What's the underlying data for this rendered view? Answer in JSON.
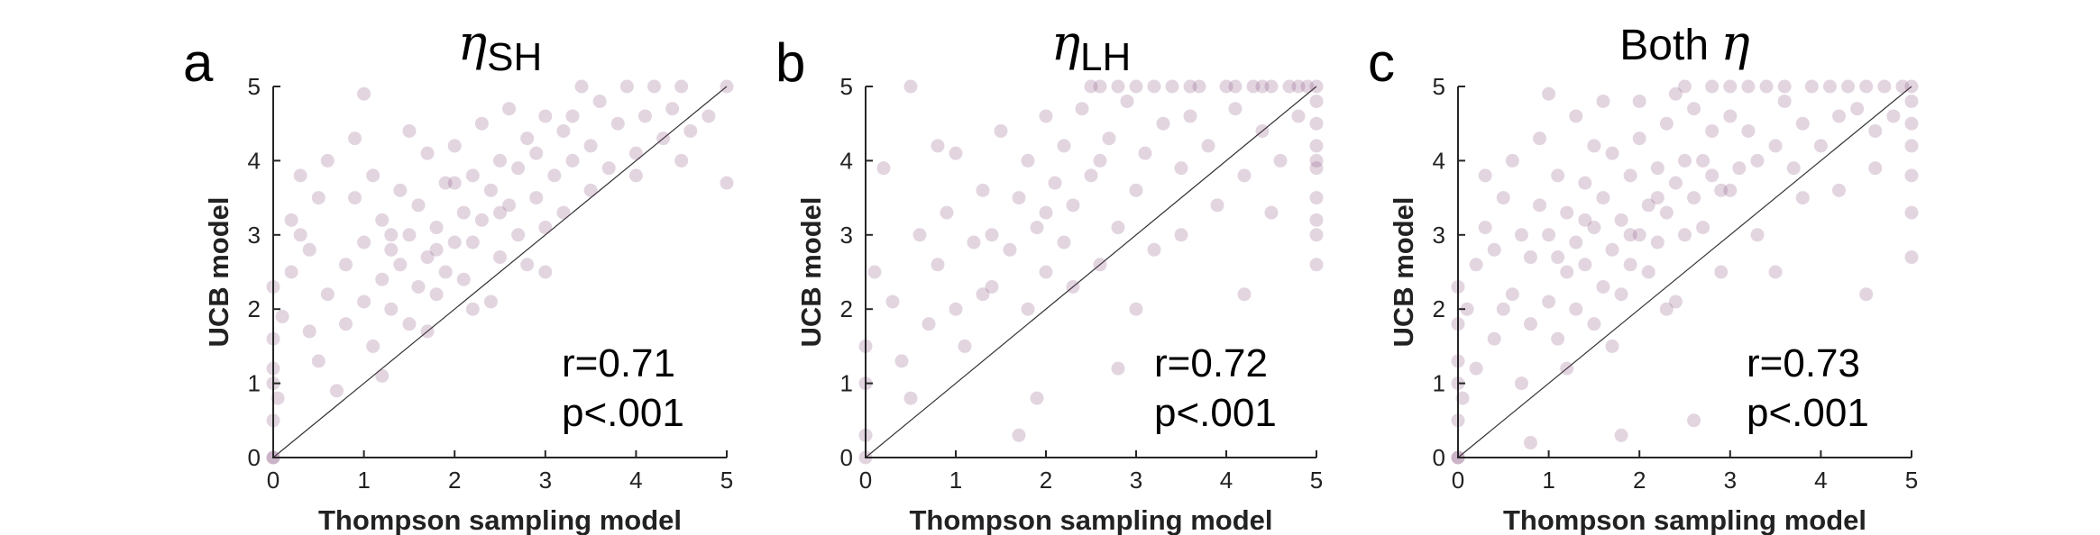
{
  "chart_data": [
    {
      "type": "scatter",
      "panel_label": "a",
      "title_symbol": "η",
      "title_subscript": "SH",
      "title_text": "",
      "xlabel": "Thompson sampling model",
      "ylabel": "UCB model",
      "xlim": [
        0,
        5
      ],
      "ylim": [
        0,
        5
      ],
      "xticks": [
        "0",
        "1",
        "2",
        "3",
        "4",
        "5"
      ],
      "yticks": [
        "0",
        "1",
        "2",
        "3",
        "4",
        "5"
      ],
      "identity_line": true,
      "point_color": "#7b3f74",
      "annotation_r": "r=0.71",
      "annotation_p": "p<.001",
      "points": [
        [
          0,
          0
        ],
        [
          0,
          0
        ],
        [
          0,
          0.5
        ],
        [
          0,
          1.0
        ],
        [
          0,
          1.2
        ],
        [
          0,
          1.6
        ],
        [
          0,
          2.3
        ],
        [
          0.05,
          0.8
        ],
        [
          0.1,
          1.9
        ],
        [
          0.2,
          2.5
        ],
        [
          0.3,
          3.0
        ],
        [
          0.4,
          1.7
        ],
        [
          0.5,
          1.3
        ],
        [
          0.6,
          2.2
        ],
        [
          0.7,
          0.9
        ],
        [
          0.8,
          2.6
        ],
        [
          0.9,
          3.5
        ],
        [
          1.0,
          2.1
        ],
        [
          1.0,
          2.9
        ],
        [
          1.1,
          1.5
        ],
        [
          1.1,
          3.8
        ],
        [
          1.2,
          2.4
        ],
        [
          1.2,
          3.2
        ],
        [
          1.3,
          2.0
        ],
        [
          1.3,
          2.8
        ],
        [
          1.4,
          3.6
        ],
        [
          1.4,
          2.6
        ],
        [
          1.5,
          1.8
        ],
        [
          1.5,
          3.0
        ],
        [
          1.6,
          2.3
        ],
        [
          1.6,
          3.4
        ],
        [
          1.7,
          2.7
        ],
        [
          1.7,
          4.1
        ],
        [
          1.8,
          2.2
        ],
        [
          1.8,
          3.1
        ],
        [
          1.9,
          3.7
        ],
        [
          1.9,
          2.5
        ],
        [
          2.0,
          2.9
        ],
        [
          2.0,
          4.2
        ],
        [
          2.1,
          3.3
        ],
        [
          2.1,
          2.4
        ],
        [
          2.2,
          3.8
        ],
        [
          2.2,
          2.9
        ],
        [
          2.3,
          4.5
        ],
        [
          2.3,
          3.2
        ],
        [
          2.4,
          2.1
        ],
        [
          2.4,
          3.6
        ],
        [
          2.5,
          4.0
        ],
        [
          2.5,
          2.7
        ],
        [
          2.6,
          3.4
        ],
        [
          2.6,
          4.7
        ],
        [
          2.7,
          3.0
        ],
        [
          2.7,
          3.9
        ],
        [
          2.8,
          4.3
        ],
        [
          2.8,
          2.6
        ],
        [
          2.9,
          3.5
        ],
        [
          3.0,
          4.6
        ],
        [
          3.0,
          3.1
        ],
        [
          3.1,
          3.8
        ],
        [
          3.2,
          4.4
        ],
        [
          3.2,
          3.3
        ],
        [
          3.3,
          4.0
        ],
        [
          3.4,
          5.0
        ],
        [
          3.5,
          4.2
        ],
        [
          3.5,
          3.6
        ],
        [
          3.6,
          4.8
        ],
        [
          3.7,
          3.9
        ],
        [
          3.8,
          4.5
        ],
        [
          3.9,
          5.0
        ],
        [
          4.0,
          4.1
        ],
        [
          4.1,
          4.6
        ],
        [
          4.2,
          5.0
        ],
        [
          4.3,
          4.3
        ],
        [
          4.4,
          4.7
        ],
        [
          4.5,
          5.0
        ],
        [
          4.6,
          4.4
        ],
        [
          4.8,
          4.6
        ],
        [
          5,
          5
        ],
        [
          0.3,
          3.8
        ],
        [
          0.6,
          4.0
        ],
        [
          0.2,
          3.2
        ],
        [
          0.9,
          4.3
        ],
        [
          1.0,
          4.9
        ],
        [
          0.5,
          3.5
        ],
        [
          0.8,
          1.8
        ],
        [
          1.2,
          1.1
        ],
        [
          0.4,
          2.8
        ],
        [
          1.5,
          4.4
        ],
        [
          2.0,
          3.7
        ],
        [
          2.5,
          3.3
        ],
        [
          1.8,
          2.8
        ],
        [
          1.3,
          3.0
        ],
        [
          2.9,
          4.1
        ],
        [
          3.3,
          4.6
        ],
        [
          4.0,
          3.8
        ],
        [
          4.5,
          4.0
        ],
        [
          5.0,
          3.7
        ],
        [
          3.0,
          2.5
        ],
        [
          2.2,
          2.0
        ],
        [
          1.7,
          1.7
        ]
      ]
    },
    {
      "type": "scatter",
      "panel_label": "b",
      "title_symbol": "η",
      "title_subscript": "LH",
      "title_text": "",
      "xlabel": "Thompson sampling model",
      "ylabel": "UCB model",
      "xlim": [
        0,
        5
      ],
      "ylim": [
        0,
        5
      ],
      "xticks": [
        "0",
        "1",
        "2",
        "3",
        "4",
        "5"
      ],
      "yticks": [
        "0",
        "1",
        "2",
        "3",
        "4",
        "5"
      ],
      "identity_line": true,
      "point_color": "#7b3f74",
      "annotation_r": "r=0.72",
      "annotation_p": "p<.001",
      "points": [
        [
          0,
          0
        ],
        [
          0,
          0.3
        ],
        [
          0,
          1.0
        ],
        [
          0,
          1.5
        ],
        [
          0.1,
          2.5
        ],
        [
          0.2,
          3.9
        ],
        [
          0.3,
          2.1
        ],
        [
          0.4,
          1.3
        ],
        [
          0.5,
          5.0
        ],
        [
          0.6,
          3.0
        ],
        [
          0.7,
          1.8
        ],
        [
          0.8,
          2.6
        ],
        [
          0.9,
          3.3
        ],
        [
          1.0,
          2.0
        ],
        [
          1.0,
          4.1
        ],
        [
          1.1,
          1.5
        ],
        [
          1.2,
          2.9
        ],
        [
          1.3,
          3.6
        ],
        [
          1.4,
          2.3
        ],
        [
          1.5,
          4.4
        ],
        [
          1.6,
          2.8
        ],
        [
          1.7,
          3.5
        ],
        [
          1.8,
          2.0
        ],
        [
          1.8,
          4.0
        ],
        [
          1.9,
          3.1
        ],
        [
          2.0,
          4.6
        ],
        [
          2.0,
          2.5
        ],
        [
          2.1,
          3.7
        ],
        [
          2.2,
          4.2
        ],
        [
          2.2,
          2.9
        ],
        [
          2.3,
          3.4
        ],
        [
          2.4,
          4.7
        ],
        [
          2.5,
          5.0
        ],
        [
          2.5,
          3.8
        ],
        [
          2.6,
          2.6
        ],
        [
          2.7,
          4.3
        ],
        [
          2.8,
          3.1
        ],
        [
          2.9,
          4.8
        ],
        [
          3.0,
          3.6
        ],
        [
          3.0,
          5.0
        ],
        [
          3.1,
          4.1
        ],
        [
          3.2,
          2.8
        ],
        [
          3.3,
          4.5
        ],
        [
          3.4,
          5.0
        ],
        [
          3.5,
          3.9
        ],
        [
          3.6,
          4.6
        ],
        [
          3.7,
          5.0
        ],
        [
          3.8,
          4.2
        ],
        [
          3.9,
          3.4
        ],
        [
          4.0,
          5.0
        ],
        [
          4.1,
          4.7
        ],
        [
          4.2,
          3.8
        ],
        [
          4.3,
          5.0
        ],
        [
          4.4,
          4.4
        ],
        [
          4.5,
          5.0
        ],
        [
          4.6,
          4.0
        ],
        [
          4.7,
          5.0
        ],
        [
          4.8,
          4.6
        ],
        [
          4.9,
          5.0
        ],
        [
          5,
          5
        ],
        [
          5,
          4.8
        ],
        [
          5,
          4.5
        ],
        [
          5,
          4.2
        ],
        [
          5,
          3.9
        ],
        [
          5,
          3.5
        ],
        [
          5,
          3.0
        ],
        [
          5,
          2.6
        ],
        [
          5,
          4.0
        ],
        [
          5,
          3.2
        ],
        [
          2.8,
          5.0
        ],
        [
          3.2,
          5.0
        ],
        [
          3.6,
          5.0
        ],
        [
          4.1,
          5.0
        ],
        [
          4.4,
          5.0
        ],
        [
          4.8,
          5.0
        ],
        [
          2.6,
          5.0
        ],
        [
          1.3,
          2.2
        ],
        [
          0.5,
          0.8
        ],
        [
          1.9,
          0.8
        ],
        [
          2.8,
          1.2
        ],
        [
          1.7,
          0.3
        ],
        [
          0.8,
          4.2
        ],
        [
          1.4,
          3.0
        ],
        [
          2.3,
          2.3
        ],
        [
          3.0,
          2.0
        ],
        [
          3.5,
          3.0
        ],
        [
          4.2,
          2.2
        ],
        [
          4.5,
          3.3
        ],
        [
          2.0,
          3.3
        ],
        [
          2.6,
          4.0
        ]
      ]
    },
    {
      "type": "scatter",
      "panel_label": "c",
      "title_symbol": "η",
      "title_subscript": "",
      "title_text": "Both",
      "xlabel": "Thompson sampling model",
      "ylabel": "UCB model",
      "xlim": [
        0,
        5
      ],
      "ylim": [
        0,
        5
      ],
      "xticks": [
        "0",
        "1",
        "2",
        "3",
        "4",
        "5"
      ],
      "yticks": [
        "0",
        "1",
        "2",
        "3",
        "4",
        "5"
      ],
      "identity_line": true,
      "point_color": "#7b3f74",
      "annotation_r": "r=0.73",
      "annotation_p": "p<.001",
      "points": [
        [
          0,
          0
        ],
        [
          0,
          0
        ],
        [
          0,
          0.5
        ],
        [
          0,
          1.0
        ],
        [
          0,
          1.3
        ],
        [
          0,
          1.8
        ],
        [
          0,
          2.3
        ],
        [
          0.05,
          0.8
        ],
        [
          0.1,
          2.0
        ],
        [
          0.2,
          2.6
        ],
        [
          0.3,
          3.1
        ],
        [
          0.4,
          1.6
        ],
        [
          0.5,
          3.5
        ],
        [
          0.6,
          2.2
        ],
        [
          0.7,
          1.0
        ],
        [
          0.8,
          2.7
        ],
        [
          0.9,
          3.4
        ],
        [
          1.0,
          2.1
        ],
        [
          1.0,
          3.0
        ],
        [
          1.1,
          1.6
        ],
        [
          1.1,
          3.8
        ],
        [
          1.2,
          2.5
        ],
        [
          1.2,
          3.3
        ],
        [
          1.3,
          2.0
        ],
        [
          1.3,
          2.9
        ],
        [
          1.4,
          3.7
        ],
        [
          1.4,
          2.6
        ],
        [
          1.5,
          1.8
        ],
        [
          1.5,
          3.1
        ],
        [
          1.6,
          2.3
        ],
        [
          1.6,
          3.5
        ],
        [
          1.7,
          2.8
        ],
        [
          1.7,
          4.1
        ],
        [
          1.8,
          2.2
        ],
        [
          1.8,
          3.2
        ],
        [
          1.9,
          3.8
        ],
        [
          1.9,
          2.6
        ],
        [
          2.0,
          3.0
        ],
        [
          2.0,
          4.3
        ],
        [
          2.1,
          3.4
        ],
        [
          2.1,
          2.5
        ],
        [
          2.2,
          3.9
        ],
        [
          2.2,
          2.9
        ],
        [
          2.3,
          4.5
        ],
        [
          2.3,
          3.3
        ],
        [
          2.4,
          2.1
        ],
        [
          2.4,
          3.7
        ],
        [
          2.5,
          4.0
        ],
        [
          2.5,
          5.0
        ],
        [
          2.6,
          3.5
        ],
        [
          2.6,
          4.7
        ],
        [
          2.7,
          3.1
        ],
        [
          2.7,
          4.0
        ],
        [
          2.8,
          4.4
        ],
        [
          2.8,
          5.0
        ],
        [
          2.9,
          3.6
        ],
        [
          3.0,
          4.6
        ],
        [
          3.0,
          5.0
        ],
        [
          3.1,
          3.9
        ],
        [
          3.2,
          4.4
        ],
        [
          3.2,
          5.0
        ],
        [
          3.3,
          4.0
        ],
        [
          3.4,
          5.0
        ],
        [
          3.5,
          4.2
        ],
        [
          3.6,
          5.0
        ],
        [
          3.6,
          4.8
        ],
        [
          3.7,
          3.9
        ],
        [
          3.8,
          4.5
        ],
        [
          3.9,
          5.0
        ],
        [
          4.0,
          4.2
        ],
        [
          4.1,
          5.0
        ],
        [
          4.2,
          4.6
        ],
        [
          4.3,
          5.0
        ],
        [
          4.4,
          4.7
        ],
        [
          4.5,
          5.0
        ],
        [
          4.6,
          4.4
        ],
        [
          4.7,
          5.0
        ],
        [
          4.8,
          4.6
        ],
        [
          4.9,
          5.0
        ],
        [
          5,
          5
        ],
        [
          5,
          4.8
        ],
        [
          5,
          4.5
        ],
        [
          5,
          4.2
        ],
        [
          5,
          3.8
        ],
        [
          5,
          3.3
        ],
        [
          5,
          2.7
        ],
        [
          0.3,
          3.8
        ],
        [
          0.6,
          4.0
        ],
        [
          0.9,
          4.3
        ],
        [
          1.0,
          4.9
        ],
        [
          1.3,
          4.6
        ],
        [
          1.6,
          4.8
        ],
        [
          2.0,
          4.8
        ],
        [
          0.4,
          2.8
        ],
        [
          0.8,
          1.8
        ],
        [
          1.2,
          1.2
        ],
        [
          1.7,
          1.5
        ],
        [
          2.3,
          2.0
        ],
        [
          2.9,
          2.5
        ],
        [
          3.3,
          3.0
        ],
        [
          3.8,
          3.5
        ],
        [
          4.2,
          3.6
        ],
        [
          4.6,
          3.9
        ],
        [
          3.5,
          2.5
        ],
        [
          4.5,
          2.2
        ],
        [
          2.6,
          0.5
        ],
        [
          1.8,
          0.3
        ],
        [
          0.8,
          0.2
        ],
        [
          1.5,
          4.2
        ],
        [
          2.4,
          4.9
        ],
        [
          0.2,
          1.2
        ],
        [
          0.5,
          2.0
        ],
        [
          0.7,
          3.0
        ],
        [
          1.1,
          2.7
        ],
        [
          1.4,
          3.2
        ],
        [
          1.9,
          3.0
        ],
        [
          2.2,
          3.5
        ],
        [
          2.5,
          3.0
        ],
        [
          2.8,
          3.8
        ],
        [
          3.0,
          3.6
        ]
      ]
    }
  ]
}
